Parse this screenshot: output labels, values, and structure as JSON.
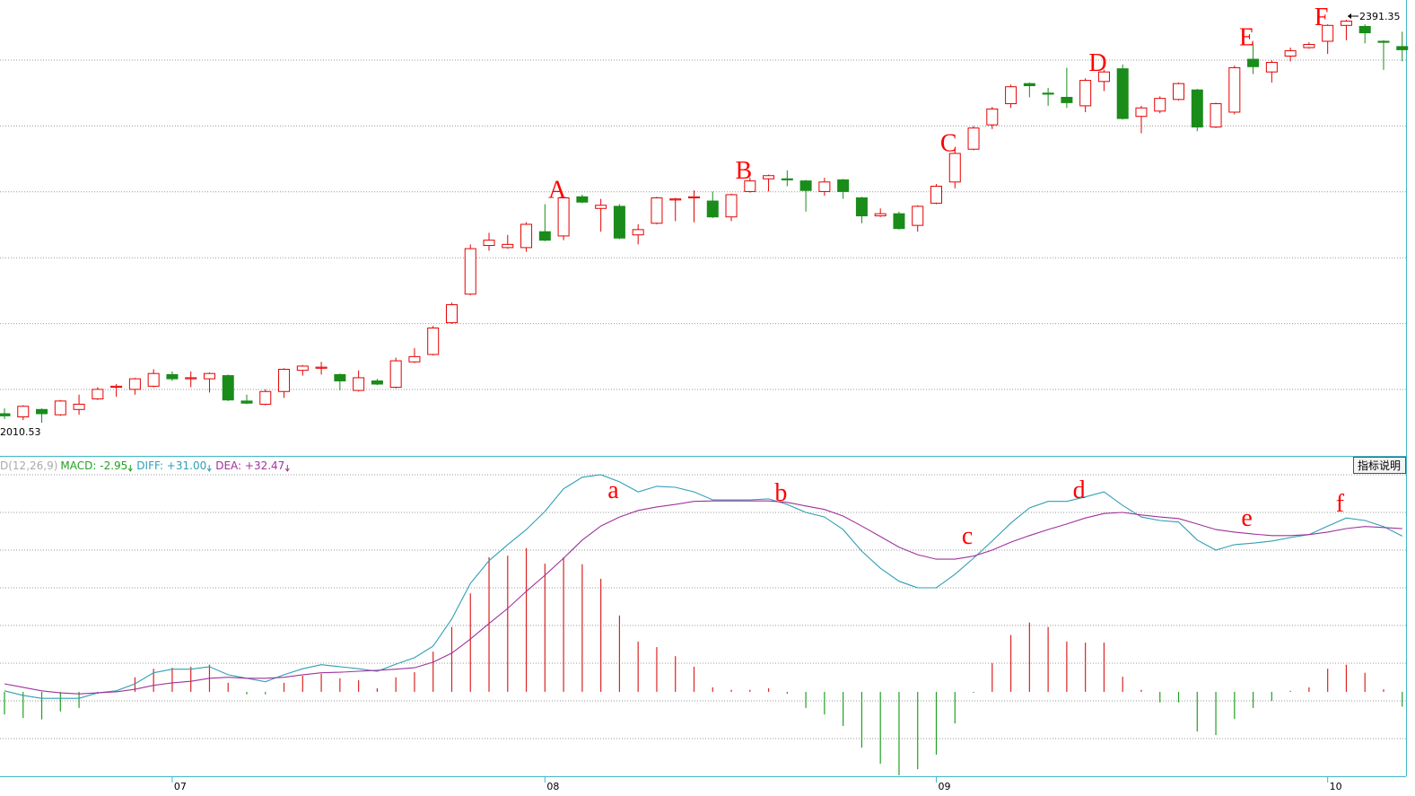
{
  "chart_data": [
    {
      "type": "candlestick",
      "up_color": "#e60000",
      "down_color": "#1a8c1a",
      "annotation_color": "#ff0000",
      "ylim": [
        1980,
        2410
      ],
      "low_label": "2010.53",
      "high_label": "2391.35",
      "categories": [
        null,
        null,
        null,
        null,
        null,
        null,
        null,
        null,
        null,
        "07",
        null,
        null,
        null,
        null,
        null,
        null,
        null,
        null,
        null,
        null,
        null,
        null,
        null,
        null,
        null,
        null,
        null,
        null,
        null,
        "08",
        null,
        null,
        null,
        null,
        null,
        null,
        null,
        null,
        null,
        null,
        null,
        null,
        null,
        null,
        null,
        null,
        null,
        null,
        null,
        null,
        "09",
        null,
        null,
        null,
        null,
        null,
        null,
        null,
        null,
        null,
        null,
        null,
        null,
        null,
        null,
        null,
        null,
        null,
        null,
        null,
        null,
        "10",
        null,
        null,
        null,
        null
      ],
      "annotations": [
        null,
        null,
        null,
        null,
        null,
        null,
        null,
        null,
        null,
        null,
        null,
        null,
        null,
        null,
        null,
        null,
        null,
        null,
        null,
        null,
        null,
        null,
        null,
        null,
        null,
        null,
        null,
        null,
        null,
        null,
        "A",
        null,
        null,
        null,
        null,
        null,
        null,
        null,
        null,
        null,
        "B",
        null,
        null,
        null,
        null,
        null,
        null,
        null,
        null,
        null,
        null,
        "C",
        null,
        null,
        null,
        null,
        null,
        null,
        null,
        "D",
        null,
        null,
        null,
        null,
        null,
        null,
        null,
        "E",
        null,
        null,
        null,
        "F",
        null,
        null,
        null,
        null
      ],
      "ohlc": [
        [
          2019,
          2024,
          2014,
          2017
        ],
        [
          2016,
          2027,
          2013,
          2026
        ],
        [
          2023,
          2024,
          2010.53,
          2019
        ],
        [
          2018,
          2032,
          2017,
          2031
        ],
        [
          2023,
          2037,
          2018,
          2028
        ],
        [
          2033,
          2044,
          2032,
          2042
        ],
        [
          2044,
          2047,
          2035,
          2045
        ],
        [
          2042,
          2053,
          2037,
          2052
        ],
        [
          2045,
          2061,
          2044,
          2057
        ],
        [
          2056,
          2059,
          2050,
          2052
        ],
        [
          2052,
          2059,
          2044,
          2053
        ],
        [
          2052,
          2058,
          2039,
          2057
        ],
        [
          2055,
          2056,
          2031,
          2032
        ],
        [
          2031,
          2037,
          2028,
          2029
        ],
        [
          2028,
          2042,
          2027,
          2040
        ],
        [
          2040,
          2062,
          2034,
          2061
        ],
        [
          2060,
          2065,
          2055,
          2064
        ],
        [
          2062,
          2068,
          2056,
          2063
        ],
        [
          2056,
          2057,
          2041,
          2050
        ],
        [
          2041,
          2060,
          2040,
          2053
        ],
        [
          2050,
          2052,
          2046,
          2047
        ],
        [
          2044,
          2072,
          2043,
          2069
        ],
        [
          2068,
          2081,
          2067,
          2073
        ],
        [
          2075,
          2102,
          2074,
          2100
        ],
        [
          2105,
          2124,
          2104,
          2122
        ],
        [
          2132,
          2179,
          2131,
          2175
        ],
        [
          2178,
          2190,
          2173,
          2183
        ],
        [
          2176,
          2188,
          2175,
          2179
        ],
        [
          2176,
          2200,
          2172,
          2198
        ],
        [
          2191,
          2217,
          2182,
          2183
        ],
        [
          2187,
          2224,
          2183,
          2223
        ],
        [
          2224,
          2226,
          2218,
          2219
        ],
        [
          2213,
          2222,
          2191,
          2216
        ],
        [
          2215,
          2217,
          2184,
          2185
        ],
        [
          2188,
          2198,
          2179,
          2193
        ],
        [
          2199,
          2224,
          2198,
          2223
        ],
        [
          2221,
          2223,
          2201,
          2222
        ],
        [
          2223,
          2230,
          2200,
          2224
        ],
        [
          2220,
          2229,
          2204,
          2205
        ],
        [
          2205,
          2227,
          2201,
          2226
        ],
        [
          2229,
          2242,
          2228,
          2239
        ],
        [
          2241,
          2245,
          2229,
          2244
        ],
        [
          2241,
          2249,
          2234,
          2240
        ],
        [
          2239,
          2240,
          2210,
          2230
        ],
        [
          2229,
          2242,
          2225,
          2238
        ],
        [
          2240,
          2241,
          2222,
          2229
        ],
        [
          2223,
          2224,
          2199,
          2206
        ],
        [
          2206,
          2213,
          2205,
          2208
        ],
        [
          2208,
          2210,
          2193,
          2194
        ],
        [
          2197,
          2216,
          2191,
          2215
        ],
        [
          2218,
          2236,
          2217,
          2234
        ],
        [
          2238,
          2268,
          2232,
          2265
        ],
        [
          2269,
          2291,
          2268,
          2289
        ],
        [
          2292,
          2309,
          2288,
          2307
        ],
        [
          2312,
          2330,
          2308,
          2328
        ],
        [
          2331,
          2332,
          2318,
          2329
        ],
        [
          2322,
          2327,
          2310,
          2321
        ],
        [
          2318,
          2346,
          2308,
          2313
        ],
        [
          2310,
          2336,
          2304,
          2334
        ],
        [
          2333,
          2344,
          2324,
          2342
        ],
        [
          2345,
          2349,
          2297,
          2298
        ],
        [
          2300,
          2310,
          2284,
          2308
        ],
        [
          2305,
          2319,
          2303,
          2317
        ],
        [
          2316,
          2332,
          2315,
          2331
        ],
        [
          2325,
          2326,
          2286,
          2290
        ],
        [
          2290,
          2313,
          2289,
          2312
        ],
        [
          2304,
          2348,
          2302,
          2346
        ],
        [
          2354,
          2368,
          2340,
          2347
        ],
        [
          2342,
          2353,
          2332,
          2351
        ],
        [
          2357,
          2365,
          2352,
          2362
        ],
        [
          2365,
          2370,
          2364,
          2368
        ],
        [
          2371,
          2387,
          2359,
          2386
        ],
        [
          2386,
          2391.35,
          2372,
          2390
        ],
        [
          2385,
          2387,
          2369,
          2379
        ],
        [
          2371,
          2372,
          2344,
          2370
        ],
        [
          2366,
          2380,
          2352,
          2363
        ]
      ]
    },
    {
      "type": "macd",
      "header": "D(12,26,9)",
      "ylim": [
        -16.8,
        46.6
      ],
      "annotation_color": "#ff0000",
      "annotations": [
        null,
        null,
        null,
        null,
        null,
        null,
        null,
        null,
        null,
        null,
        null,
        null,
        null,
        null,
        null,
        null,
        null,
        null,
        null,
        null,
        null,
        null,
        null,
        null,
        null,
        null,
        null,
        null,
        null,
        null,
        null,
        null,
        null,
        "a",
        null,
        null,
        null,
        null,
        null,
        null,
        null,
        null,
        "b",
        null,
        null,
        null,
        null,
        null,
        null,
        null,
        null,
        null,
        "c",
        null,
        null,
        null,
        null,
        null,
        "d",
        null,
        null,
        null,
        null,
        null,
        null,
        null,
        null,
        "e",
        null,
        null,
        null,
        null,
        "f",
        null,
        null,
        null
      ],
      "histogram": {
        "label": "MACD: -2.95",
        "up_color": "#dd2222",
        "down_color": "#22a022",
        "label_color": "#22a022",
        "values": [
          -4.5,
          -5.2,
          -5.5,
          -3.9,
          -3.2,
          -0.4,
          0,
          2.9,
          4.6,
          4.8,
          5.0,
          5.4,
          1.8,
          -0.5,
          -0.5,
          1.8,
          3.2,
          3.6,
          2.7,
          2.3,
          0.7,
          2.9,
          3.9,
          8.0,
          12.9,
          19.6,
          26.8,
          27.1,
          28.6,
          25.5,
          26.8,
          25.4,
          22.5,
          15.2,
          10.0,
          8.9,
          7.1,
          5.0,
          0.9,
          0.4,
          0.4,
          0.7,
          -0.4,
          -3.2,
          -4.5,
          -6.8,
          -11.1,
          -14.3,
          -16.6,
          -15.4,
          -12.5,
          -6.3,
          -0.2,
          5.7,
          11.3,
          13.8,
          12.9,
          10.0,
          9.8,
          9.8,
          3.0,
          0.4,
          -2.1,
          -2.1,
          -7.9,
          -8.6,
          -5.4,
          -3.2,
          -1.8,
          0.2,
          0.9,
          4.6,
          5.4,
          3.8,
          0.5,
          -2.95
        ]
      },
      "series": [
        {
          "label": "DIFF: +31.00",
          "color": "#2f9fb5",
          "values": [
            0.2,
            -0.7,
            -1.3,
            -1.3,
            -1.3,
            -0.2,
            0.2,
            1.6,
            3.8,
            4.5,
            4.5,
            5.0,
            3.4,
            2.7,
            2.0,
            3.4,
            4.6,
            5.4,
            5.0,
            4.6,
            4.1,
            5.5,
            6.8,
            9.1,
            14.5,
            21.6,
            26.1,
            29.3,
            32.3,
            35.9,
            40.4,
            42.7,
            43.2,
            41.8,
            39.8,
            40.9,
            40.7,
            39.8,
            38.2,
            38.2,
            38.2,
            38.4,
            37.3,
            35.7,
            34.8,
            32.3,
            28.0,
            24.6,
            22.0,
            20.7,
            20.7,
            23.4,
            26.6,
            30.0,
            33.6,
            36.6,
            37.9,
            37.9,
            38.8,
            39.8,
            37.1,
            34.8,
            34.1,
            33.8,
            30.2,
            28.2,
            29.3,
            29.6,
            30.0,
            30.7,
            31.3,
            33.0,
            34.6,
            34.1,
            32.9,
            31.0
          ]
        },
        {
          "label": "DEA: +32.47",
          "color": "#a0329c",
          "values": [
            1.6,
            0.9,
            0.2,
            -0.2,
            -0.4,
            -0.2,
            0,
            0.5,
            1.3,
            1.8,
            2.1,
            2.7,
            2.9,
            2.7,
            2.7,
            2.9,
            3.4,
            3.8,
            3.9,
            4.1,
            4.3,
            4.5,
            4.8,
            5.9,
            7.7,
            10.5,
            13.6,
            16.6,
            20.0,
            23.2,
            26.6,
            30.2,
            33.0,
            34.8,
            36.1,
            36.8,
            37.3,
            37.9,
            38.0,
            38.0,
            38.0,
            38.0,
            37.7,
            37.0,
            36.3,
            35.0,
            33.0,
            30.9,
            28.8,
            27.3,
            26.4,
            26.4,
            27.0,
            28.2,
            29.8,
            31.1,
            32.3,
            33.4,
            34.6,
            35.5,
            35.7,
            35.2,
            34.8,
            34.5,
            33.4,
            32.3,
            31.8,
            31.4,
            31.1,
            31.1,
            31.3,
            31.8,
            32.5,
            32.9,
            32.7,
            32.47
          ]
        }
      ]
    }
  ],
  "button": "指标说明"
}
